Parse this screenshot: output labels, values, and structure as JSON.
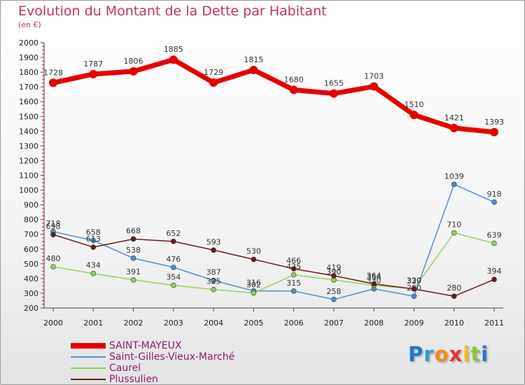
{
  "title": "Evolution du Montant de la Dette par Habitant",
  "subtitle": "(en €)",
  "logo_letters": [
    "P",
    "r",
    "o",
    "x",
    "i",
    "t",
    "i"
  ],
  "logo_colors": [
    "#1f77c8",
    "#2e9ad0",
    "#f08c1c",
    "#e5332a",
    "#f3b51c",
    "#8cc43d",
    "#1f77c8"
  ],
  "chart_data": {
    "type": "line",
    "x": [
      "2000",
      "2001",
      "2002",
      "2003",
      "2004",
      "2005",
      "2006",
      "2007",
      "2008",
      "2009",
      "2010",
      "2011"
    ],
    "ylim": [
      200,
      2000
    ],
    "yticks": [
      "200",
      "300",
      "400",
      "500",
      "600",
      "700",
      "800",
      "900",
      "1000",
      "1100",
      "1200",
      "1300",
      "1400",
      "1500",
      "1600",
      "1700",
      "1800",
      "1900",
      "2000"
    ],
    "grid": false,
    "legend_position": "bottom-left",
    "series": [
      {
        "name": "SAINT-MAYEUX",
        "color": "#e60000",
        "values": [
          1728,
          1787,
          1806,
          1885,
          1729,
          1815,
          1680,
          1655,
          1703,
          1510,
          1421,
          1393
        ],
        "labels": [
          "1728",
          "1787",
          "1806",
          "1885",
          "1729",
          "1815",
          "1680",
          "1655",
          "1703",
          "1510",
          "1421",
          "1393"
        ]
      },
      {
        "name": "Saint-Gilles-Vieux-Marché",
        "color": "#4f8fcf",
        "values": [
          718,
          658,
          538,
          476,
          387,
          316,
          315,
          258,
          330,
          280,
          1039,
          918
        ],
        "labels": [
          "718",
          "658",
          "538",
          "476",
          "387",
          "316",
          "315",
          "258",
          "330",
          "280",
          "1039",
          "918"
        ]
      },
      {
        "name": "Caurel",
        "color": "#8fd25a",
        "values": [
          480,
          434,
          391,
          354,
          325,
          302,
          425,
          390,
          354,
          330,
          710,
          639
        ],
        "labels": [
          "480",
          "434",
          "391",
          "354",
          "325",
          "302",
          "425",
          "390",
          "354",
          "330",
          "710",
          "639"
        ]
      },
      {
        "name": "Plussulien",
        "color": "#6b1a1a",
        "values": [
          698,
          613,
          668,
          652,
          593,
          530,
          466,
          419,
          364,
          329,
          280,
          394
        ],
        "labels": [
          "698",
          "613",
          "668",
          "652",
          "593",
          "530",
          "466",
          "419",
          "364",
          "329",
          "280",
          "394"
        ]
      }
    ]
  }
}
